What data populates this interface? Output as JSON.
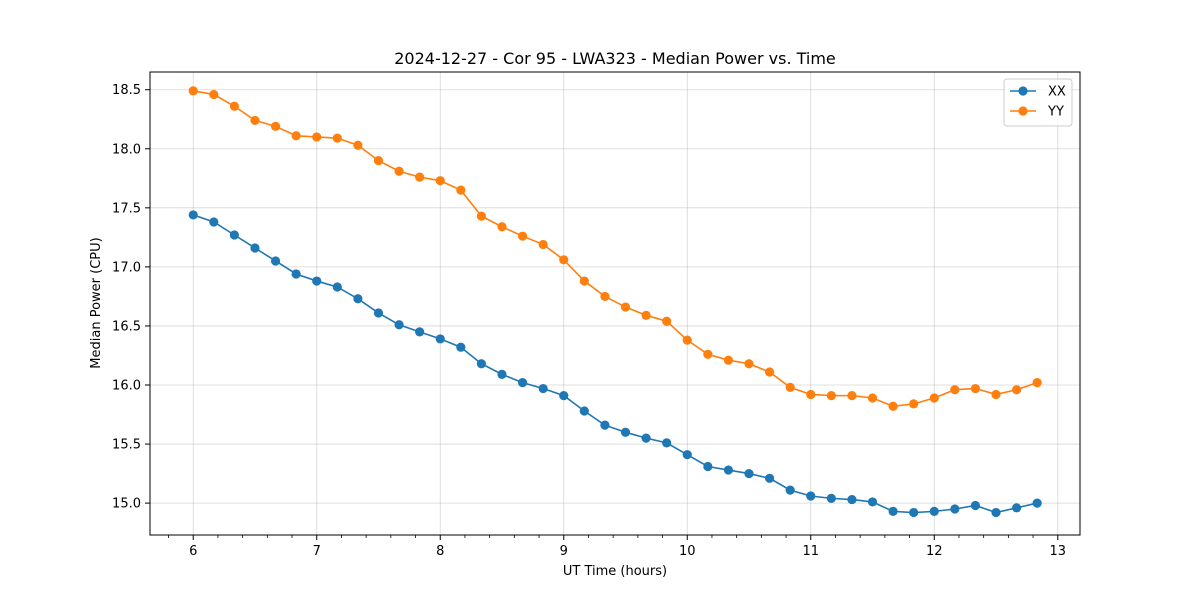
{
  "chart_data": {
    "type": "line",
    "title": "2024-12-27 - Cor 95 - LWA323 - Median Power vs. Time",
    "xlabel": "UT Time (hours)",
    "ylabel": "Median Power (CPU)",
    "xlim": [
      5.65,
      13.18
    ],
    "ylim": [
      14.73,
      18.65
    ],
    "xticks": [
      6,
      7,
      8,
      9,
      10,
      11,
      12,
      13
    ],
    "xtick_labels": [
      "6",
      "7",
      "8",
      "9",
      "10",
      "11",
      "12",
      "13"
    ],
    "yticks": [
      15.0,
      15.5,
      16.0,
      16.5,
      17.0,
      17.5,
      18.0,
      18.5
    ],
    "ytick_labels": [
      "15.0",
      "15.5",
      "16.0",
      "16.5",
      "17.0",
      "17.5",
      "18.0",
      "18.5"
    ],
    "grid": true,
    "legend_position": "top-right",
    "x": [
      6.0,
      6.1667,
      6.3333,
      6.5,
      6.6667,
      6.8333,
      7.0,
      7.1667,
      7.3333,
      7.5,
      7.6667,
      7.8333,
      8.0,
      8.1667,
      8.3333,
      8.5,
      8.6667,
      8.8333,
      9.0,
      9.1667,
      9.3333,
      9.5,
      9.6667,
      9.8333,
      10.0,
      10.1667,
      10.3333,
      10.5,
      10.6667,
      10.8333,
      11.0,
      11.1667,
      11.3333,
      11.5,
      11.6667,
      11.8333,
      12.0,
      12.1667,
      12.3333,
      12.5,
      12.6667,
      12.8333
    ],
    "series": [
      {
        "name": "XX",
        "color": "#1f77b4",
        "values": [
          17.44,
          17.38,
          17.27,
          17.16,
          17.05,
          16.94,
          16.88,
          16.83,
          16.73,
          16.61,
          16.51,
          16.45,
          16.39,
          16.32,
          16.18,
          16.09,
          16.02,
          15.97,
          15.91,
          15.78,
          15.66,
          15.6,
          15.55,
          15.51,
          15.41,
          15.31,
          15.28,
          15.25,
          15.21,
          15.11,
          15.06,
          15.04,
          15.03,
          15.01,
          14.93,
          14.92,
          14.93,
          14.95,
          14.98,
          14.92,
          14.96,
          15.0
        ]
      },
      {
        "name": "YY",
        "color": "#ff7f0e",
        "values": [
          18.49,
          18.46,
          18.36,
          18.24,
          18.19,
          18.11,
          18.1,
          18.09,
          18.03,
          17.9,
          17.81,
          17.76,
          17.73,
          17.65,
          17.43,
          17.34,
          17.26,
          17.19,
          17.06,
          16.88,
          16.75,
          16.66,
          16.59,
          16.54,
          16.38,
          16.26,
          16.21,
          16.18,
          16.11,
          15.98,
          15.92,
          15.91,
          15.91,
          15.89,
          15.82,
          15.84,
          15.89,
          15.96,
          15.97,
          15.92,
          15.96,
          16.02
        ]
      }
    ]
  }
}
